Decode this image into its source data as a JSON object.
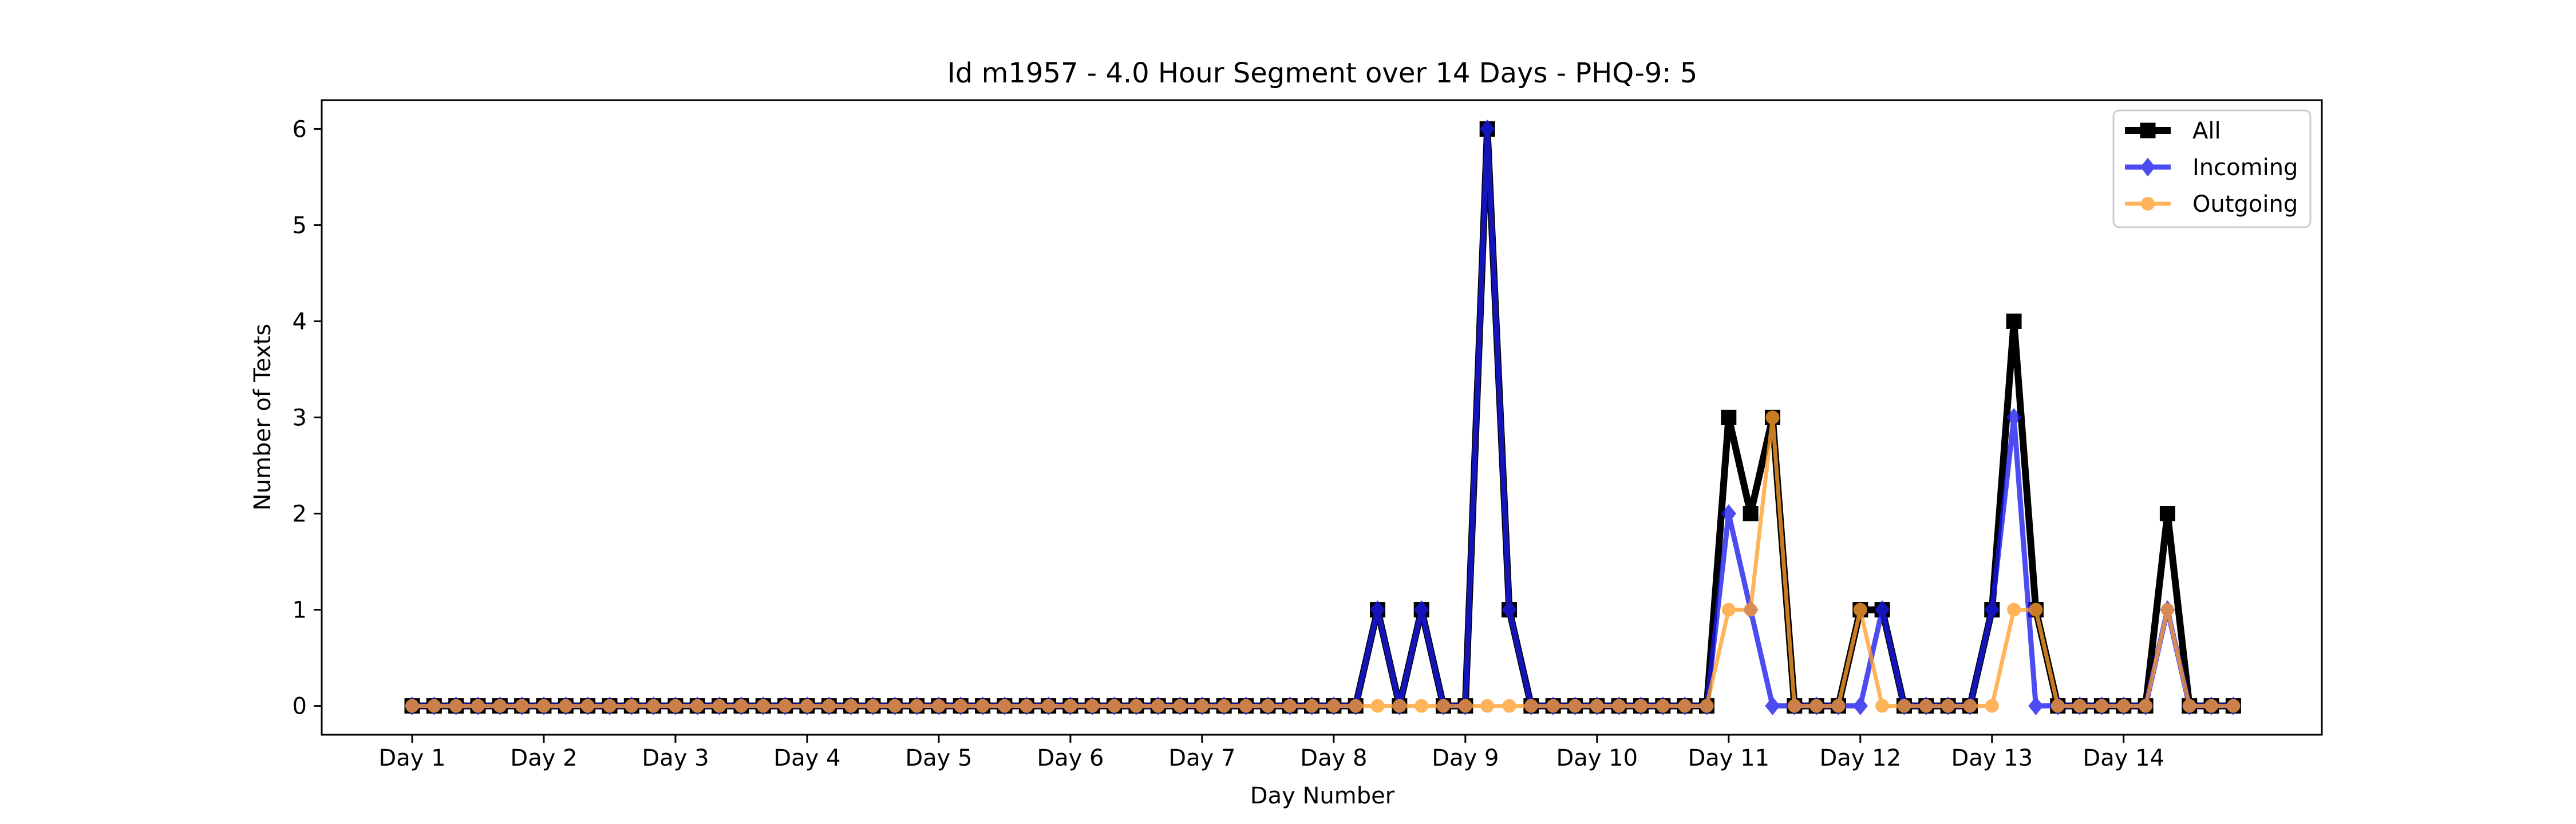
{
  "chart_data": {
    "type": "line",
    "title": "Id m1957 - 4.0 Hour Segment over 14 Days - PHQ-9: 5",
    "xlabel": "Day Number",
    "ylabel": "Number of Texts",
    "ylim": [
      -0.3,
      6.3
    ],
    "yticks": [
      0,
      1,
      2,
      3,
      4,
      5,
      6
    ],
    "xticks": [
      "Day 1",
      "Day 2",
      "Day 3",
      "Day 4",
      "Day 5",
      "Day 6",
      "Day 7",
      "Day 8",
      "Day 9",
      "Day 10",
      "Day 11",
      "Day 12",
      "Day 13",
      "Day 14"
    ],
    "points_per_day": 6,
    "grid": false,
    "legend_position": "upper right",
    "series": [
      {
        "name": "All",
        "color": "#000000",
        "marker": "square",
        "values": [
          0,
          0,
          0,
          0,
          0,
          0,
          0,
          0,
          0,
          0,
          0,
          0,
          0,
          0,
          0,
          0,
          0,
          0,
          0,
          0,
          0,
          0,
          0,
          0,
          0,
          0,
          0,
          0,
          0,
          0,
          0,
          0,
          0,
          0,
          0,
          0,
          0,
          0,
          0,
          0,
          0,
          0,
          0,
          0,
          1,
          0,
          1,
          0,
          0,
          6,
          1,
          0,
          0,
          0,
          0,
          0,
          0,
          0,
          0,
          0,
          3,
          2,
          3,
          0,
          0,
          0,
          1,
          1,
          0,
          0,
          0,
          0,
          1,
          4,
          1,
          0,
          0,
          0,
          0,
          0,
          2,
          0,
          0,
          0
        ]
      },
      {
        "name": "Incoming",
        "color": "#1a1aee",
        "marker": "diamond",
        "values": [
          0,
          0,
          0,
          0,
          0,
          0,
          0,
          0,
          0,
          0,
          0,
          0,
          0,
          0,
          0,
          0,
          0,
          0,
          0,
          0,
          0,
          0,
          0,
          0,
          0,
          0,
          0,
          0,
          0,
          0,
          0,
          0,
          0,
          0,
          0,
          0,
          0,
          0,
          0,
          0,
          0,
          0,
          0,
          0,
          1,
          0,
          1,
          0,
          0,
          6,
          1,
          0,
          0,
          0,
          0,
          0,
          0,
          0,
          0,
          0,
          2,
          1,
          0,
          0,
          0,
          0,
          0,
          1,
          0,
          0,
          0,
          0,
          1,
          3,
          0,
          0,
          0,
          0,
          0,
          0,
          1,
          0,
          0,
          0
        ]
      },
      {
        "name": "Outgoing",
        "color": "#ff9f2e",
        "marker": "circle",
        "values": [
          0,
          0,
          0,
          0,
          0,
          0,
          0,
          0,
          0,
          0,
          0,
          0,
          0,
          0,
          0,
          0,
          0,
          0,
          0,
          0,
          0,
          0,
          0,
          0,
          0,
          0,
          0,
          0,
          0,
          0,
          0,
          0,
          0,
          0,
          0,
          0,
          0,
          0,
          0,
          0,
          0,
          0,
          0,
          0,
          0,
          0,
          0,
          0,
          0,
          0,
          0,
          0,
          0,
          0,
          0,
          0,
          0,
          0,
          0,
          0,
          1,
          1,
          3,
          0,
          0,
          0,
          1,
          0,
          0,
          0,
          0,
          0,
          0,
          1,
          1,
          0,
          0,
          0,
          0,
          0,
          1,
          0,
          0,
          0
        ]
      }
    ]
  }
}
